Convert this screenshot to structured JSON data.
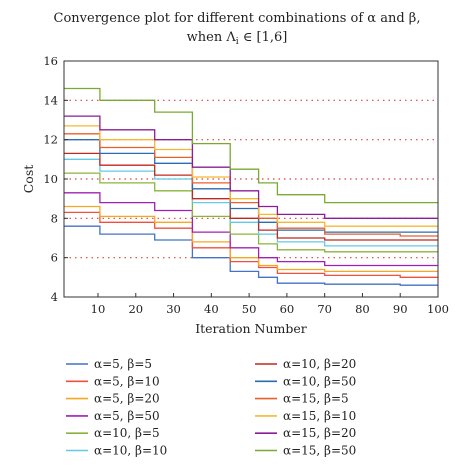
{
  "chart_data": {
    "type": "line",
    "title": "Convergence plot for different combinations of α and β,",
    "subtitle": "when Λ_i ∈ [1,6]",
    "subtitle_parts": {
      "pre": "when Λ",
      "sub": "i",
      "post": " ∈ [1,6]"
    },
    "xlabel": "Iteration Number",
    "ylabel": "Cost",
    "xlim": [
      1,
      100
    ],
    "ylim": [
      4,
      16
    ],
    "xticks": [
      "10",
      "20",
      "30",
      "40",
      "50",
      "60",
      "70",
      "80",
      "90",
      "100"
    ],
    "yticks": [
      "4",
      "6",
      "8",
      "10",
      "12",
      "14",
      "16"
    ],
    "grid": "horizontal dotted red",
    "legend_position": "bottom",
    "series": [
      {
        "name": "α=5, β=5",
        "color": "#4472c4",
        "points": [
          [
            1,
            7.6
          ],
          [
            20,
            7.2
          ],
          [
            30,
            6.9
          ],
          [
            40,
            6.0
          ],
          [
            50,
            5.3
          ],
          [
            55,
            5.0
          ],
          [
            60,
            4.7
          ],
          [
            80,
            4.65
          ],
          [
            100,
            4.6
          ]
        ]
      },
      {
        "name": "α=5, β=10",
        "color": "#f0503c",
        "points": [
          [
            1,
            8.3
          ],
          [
            20,
            7.8
          ],
          [
            30,
            7.5
          ],
          [
            40,
            6.5
          ],
          [
            50,
            5.8
          ],
          [
            55,
            5.5
          ],
          [
            60,
            5.2
          ],
          [
            80,
            5.1
          ],
          [
            100,
            5.0
          ]
        ]
      },
      {
        "name": "α=5, β=20",
        "color": "#f5a623",
        "points": [
          [
            1,
            8.6
          ],
          [
            20,
            8.1
          ],
          [
            30,
            7.8
          ],
          [
            40,
            6.8
          ],
          [
            50,
            6.0
          ],
          [
            55,
            5.6
          ],
          [
            60,
            5.4
          ],
          [
            80,
            5.3
          ],
          [
            100,
            5.3
          ]
        ]
      },
      {
        "name": "α=5, β=50",
        "color": "#a020b4",
        "points": [
          [
            1,
            9.3
          ],
          [
            20,
            8.8
          ],
          [
            30,
            8.4
          ],
          [
            40,
            7.3
          ],
          [
            50,
            6.5
          ],
          [
            55,
            6.0
          ],
          [
            60,
            5.8
          ],
          [
            80,
            5.6
          ],
          [
            100,
            5.6
          ]
        ]
      },
      {
        "name": "α=10, β=5",
        "color": "#8ab43c",
        "points": [
          [
            1,
            10.3
          ],
          [
            20,
            9.8
          ],
          [
            30,
            9.4
          ],
          [
            40,
            8.1
          ],
          [
            50,
            7.2
          ],
          [
            55,
            6.7
          ],
          [
            60,
            6.4
          ],
          [
            80,
            6.3
          ],
          [
            100,
            6.3
          ]
        ]
      },
      {
        "name": "α=10, β=10",
        "color": "#64c8e6",
        "points": [
          [
            1,
            11.0
          ],
          [
            20,
            10.4
          ],
          [
            30,
            10.0
          ],
          [
            40,
            8.8
          ],
          [
            50,
            7.8
          ],
          [
            55,
            7.2
          ],
          [
            60,
            6.8
          ],
          [
            80,
            6.6
          ],
          [
            100,
            6.6
          ]
        ]
      },
      {
        "name": "α=10, β=20",
        "color": "#c0281e",
        "points": [
          [
            1,
            11.3
          ],
          [
            20,
            10.7
          ],
          [
            30,
            10.2
          ],
          [
            40,
            9.0
          ],
          [
            50,
            8.0
          ],
          [
            55,
            7.4
          ],
          [
            60,
            7.0
          ],
          [
            80,
            6.9
          ],
          [
            100,
            6.9
          ]
        ]
      },
      {
        "name": "α=10, β=50",
        "color": "#2a6cb0",
        "points": [
          [
            1,
            12.0
          ],
          [
            20,
            11.3
          ],
          [
            30,
            10.8
          ],
          [
            40,
            9.5
          ],
          [
            50,
            8.5
          ],
          [
            55,
            7.8
          ],
          [
            60,
            7.4
          ],
          [
            80,
            7.3
          ],
          [
            100,
            7.3
          ]
        ]
      },
      {
        "name": "α=15, β=5",
        "color": "#e8602a",
        "points": [
          [
            1,
            12.3
          ],
          [
            20,
            11.6
          ],
          [
            30,
            11.1
          ],
          [
            40,
            9.8
          ],
          [
            50,
            8.8
          ],
          [
            55,
            8.0
          ],
          [
            60,
            7.5
          ],
          [
            80,
            7.2
          ],
          [
            100,
            7.1
          ]
        ]
      },
      {
        "name": "α=15, β=10",
        "color": "#f7b733",
        "points": [
          [
            1,
            12.7
          ],
          [
            20,
            12.0
          ],
          [
            30,
            11.5
          ],
          [
            40,
            10.1
          ],
          [
            50,
            9.0
          ],
          [
            55,
            8.2
          ],
          [
            60,
            7.8
          ],
          [
            80,
            7.6
          ],
          [
            100,
            7.6
          ]
        ]
      },
      {
        "name": "α=15, β=20",
        "color": "#8a1e96",
        "points": [
          [
            1,
            13.2
          ],
          [
            20,
            12.5
          ],
          [
            30,
            12.0
          ],
          [
            40,
            10.6
          ],
          [
            50,
            9.4
          ],
          [
            55,
            8.6
          ],
          [
            60,
            8.2
          ],
          [
            80,
            8.0
          ],
          [
            100,
            8.0
          ]
        ]
      },
      {
        "name": "α=15, β=50",
        "color": "#78aa32",
        "points": [
          [
            1,
            14.6
          ],
          [
            20,
            14.0
          ],
          [
            30,
            13.4
          ],
          [
            40,
            11.8
          ],
          [
            50,
            10.5
          ],
          [
            55,
            9.8
          ],
          [
            60,
            9.2
          ],
          [
            80,
            8.8
          ],
          [
            100,
            8.8
          ]
        ]
      }
    ]
  }
}
